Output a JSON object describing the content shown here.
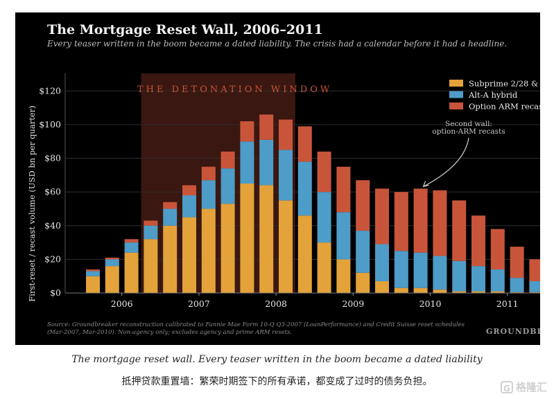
{
  "colors": {
    "background": "#000000",
    "subprime": "#e3a23a",
    "alt_a": "#4e9cc8",
    "option_arm": "#c8553a",
    "window": "#3a1710",
    "grid": "#2e2e2e"
  },
  "chart_data": {
    "type": "bar",
    "stacked": true,
    "title": "The Mortgage Reset Wall, 2006–2011",
    "subtitle": "Every teaser written in the boom became a dated liability. The crisis had a calendar before it had a headline.",
    "ylabel": "First-reset / recast volume (USD bn per quarter)",
    "xlabel": "",
    "ylim": [
      0,
      130
    ],
    "yticks": [
      "$0",
      "$20",
      "$40",
      "$60",
      "$80",
      "$100",
      "$120"
    ],
    "ytick_values": [
      0,
      20,
      40,
      60,
      80,
      100,
      120
    ],
    "x_year_labels": [
      "2006",
      "2007",
      "2008",
      "2009",
      "2010",
      "2011"
    ],
    "grid": "horizontal",
    "legend_position": "top-right",
    "categories": [
      "2006Q1",
      "2006Q2",
      "2006Q3",
      "2006Q4",
      "2007Q1",
      "2007Q2",
      "2007Q3",
      "2007Q4",
      "2008Q1",
      "2008Q2",
      "2008Q3",
      "2008Q4",
      "2009Q1",
      "2009Q2",
      "2009Q3",
      "2009Q4",
      "2010Q1",
      "2010Q2",
      "2010Q3",
      "2010Q4",
      "2011Q1",
      "2011Q2",
      "2011Q3",
      "2011Q4"
    ],
    "series": [
      {
        "name": "Subprime 2/28 &",
        "color_key": "subprime",
        "values": [
          10,
          16,
          24,
          32,
          40,
          45,
          50,
          53,
          65,
          64,
          55,
          46,
          30,
          20,
          12,
          7,
          3,
          3,
          2,
          1,
          1,
          1,
          0.5,
          0.5
        ]
      },
      {
        "name": "Alt-A hybrid",
        "color_key": "alt_a",
        "values": [
          3,
          4,
          6,
          8,
          10,
          13,
          17,
          21,
          25,
          27,
          30,
          32,
          30,
          28,
          25,
          22,
          22,
          21,
          20,
          18,
          15,
          13,
          8.5,
          6.5
        ]
      },
      {
        "name": "Option ARM recas",
        "color_key": "option_arm",
        "values": [
          1,
          1,
          2,
          3,
          4,
          6,
          8,
          10,
          12,
          15,
          18,
          21,
          24,
          27,
          30,
          33,
          35,
          38,
          39,
          36,
          30,
          24,
          18.5,
          13
        ]
      }
    ],
    "annotations": {
      "window_label": "THE DETONATION WINDOW",
      "window_range": [
        "2006Q4",
        "2008Q3"
      ],
      "second_wall_lines": [
        "Second wall:",
        "option-ARM recasts"
      ],
      "second_wall_target": "2010Q2"
    },
    "source": [
      "Source: Groundbreaker reconstruction calibrated to Fannie Mae Form 10-Q Q3-2007 (LoanPerformance) and Credit Suisse reset schedules",
      "(Mar-2007, Mar-2010). Non-agency only; excludes agency and prime ARM resets."
    ],
    "brand": "GROUNDBRE"
  },
  "caption": {
    "en": "The mortgage reset wall. Every teaser written in the boom became a dated liability",
    "zh": "抵押贷款重置墙：繁荣时期签下的所有承诺，都变成了过时的债务负担。"
  },
  "watermark": {
    "text": "格隆汇",
    "logo_icon": "G"
  }
}
